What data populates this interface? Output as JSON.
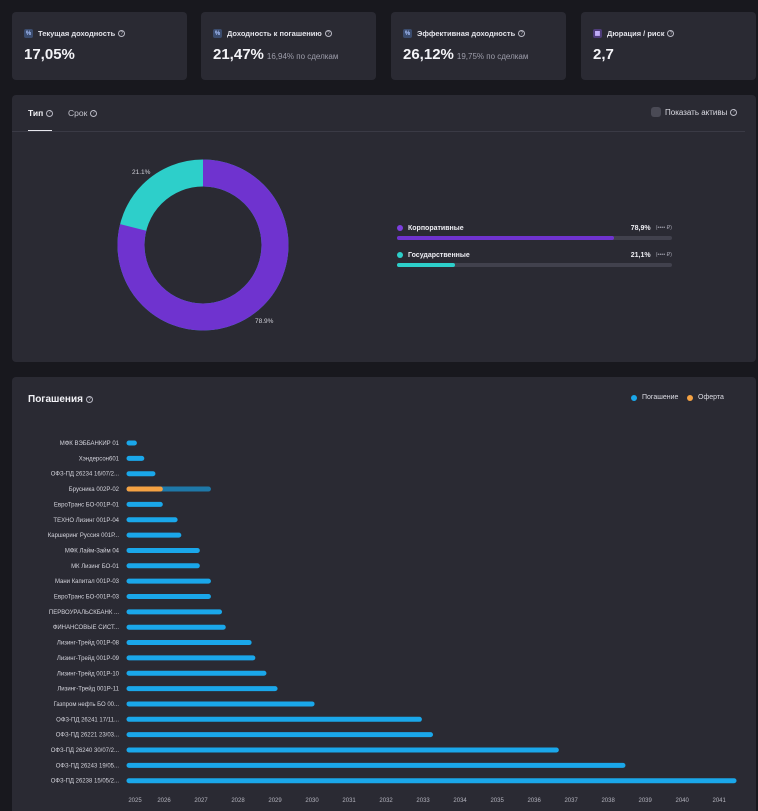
{
  "stats": [
    {
      "title": "Текущая доходность",
      "value": "17,05%",
      "sub": "",
      "icon": "percent-icon"
    },
    {
      "title": "Доходность к погашению",
      "value": "21,47%",
      "sub": "16,94% по сделкам",
      "icon": "percent-icon"
    },
    {
      "title": "Эффективная доходность",
      "value": "26,12%",
      "sub": "19,75% по сделкам",
      "icon": "percent-icon"
    },
    {
      "title": "Дюрация / риск",
      "value": "2,7",
      "sub": "",
      "icon": "calendar-icon"
    }
  ],
  "allocation": {
    "tabs": [
      "Тип",
      "Срок"
    ],
    "active_tab": "Тип",
    "show_assets_label": "Показать активы",
    "donut_labels": {
      "small": "21.1%",
      "large": "78.9%"
    },
    "items": [
      {
        "name": "Корпоративные",
        "pct": "78,9%",
        "amount": "(•••• ₽)",
        "value": 78.9,
        "color": "#6f33cf"
      },
      {
        "name": "Государственные",
        "pct": "21,1%",
        "amount": "(•••• ₽)",
        "value": 21.1,
        "color": "#2dcfca"
      }
    ]
  },
  "redemptions": {
    "title": "Погашения",
    "legend": [
      {
        "name": "Погашение",
        "color": "#1aa7ea"
      },
      {
        "name": "Оферта",
        "color": "#f5a243"
      }
    ]
  },
  "chart_data": {
    "type": "bar",
    "orientation": "horizontal",
    "title": "Погашения",
    "xlim": [
      2025,
      2041.4
    ],
    "x_ticks": [
      "2025",
      "2026",
      "2027",
      "2028",
      "2029",
      "2030",
      "2031",
      "2032",
      "2033",
      "2034",
      "2035",
      "2036",
      "2037",
      "2038",
      "2039",
      "2040",
      "2041"
    ],
    "categories": [
      "МФК ВЭББАНКИР 01",
      "Хэндерсон601",
      "ОФЗ-ПД 26234 16/07/2...",
      "Брусника 002Р-02",
      "ЕвроТранс БО-001Р-01",
      "ТЕХНО Лизинг 001Р-04",
      "Каршеринг Руссия 001Р...",
      "МФК Лайм-Займ 04",
      "МК Лизинг БО-01",
      "Мани Капитал 001Р-03",
      "ЕвроТранс БО-001Р-03",
      "ПЕРВОУРАЛЬСКБАНК ...",
      "ФИНАНСОВЫЕ СИСТ...",
      "Лизинг-Трейд 001Р-08",
      "Лизинг-Трейд 001Р-09",
      "Лизинг-Трейд 001Р-10",
      "Лизинг-Трейд 001Р-11",
      "Газпром нефть БО 00...",
      "ОФЗ-ПД 26241 17/11...",
      "ОФЗ-ПД 26221 23/03...",
      "ОФЗ-ПД 26240 30/07/2...",
      "ОФЗ-ПД 26243 19/05...",
      "ОФЗ-ПД 26238 15/05/2..."
    ],
    "series": [
      {
        "name": "Погашение",
        "values": [
          2025.2,
          2025.4,
          2025.7,
          2027.2,
          2025.9,
          2026.3,
          2026.4,
          2026.9,
          2026.9,
          2027.2,
          2027.2,
          2027.5,
          2027.6,
          2028.3,
          2028.4,
          2028.7,
          2029.0,
          2030.0,
          2032.9,
          2033.2,
          2036.6,
          2038.4,
          2041.4
        ]
      },
      {
        "name": "Оферта",
        "values": [
          null,
          null,
          null,
          2025.9,
          null,
          null,
          null,
          null,
          null,
          null,
          null,
          null,
          null,
          null,
          null,
          null,
          null,
          null,
          null,
          null,
          null,
          null,
          null
        ]
      }
    ]
  }
}
